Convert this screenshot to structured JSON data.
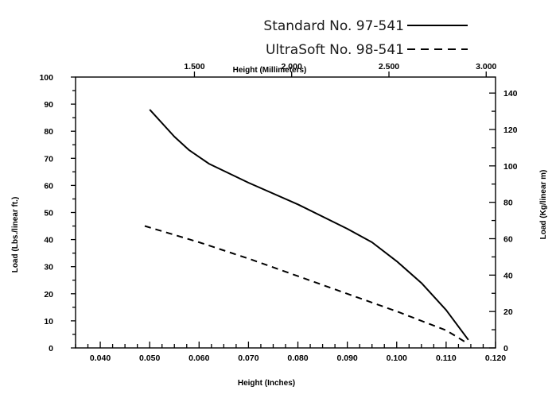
{
  "chart_data": {
    "type": "line",
    "legend_position": "top-right",
    "grid": false,
    "x_axis_bottom": {
      "label": "Height (Inches)",
      "range": [
        0.035,
        0.12
      ],
      "ticks": [
        "0.040",
        "0.050",
        "0.060",
        "0.070",
        "0.080",
        "0.090",
        "0.100",
        "0.110",
        "0.120"
      ]
    },
    "x_axis_top": {
      "label": "Height (Millimeters)",
      "ticks": [
        "1.500",
        "2.000",
        "2.500",
        "3.000"
      ],
      "tick_values_inches": [
        0.05906,
        0.07874,
        0.09843,
        0.11811
      ]
    },
    "y_axis_left": {
      "label": "Load (Lbs./linear ft.)",
      "range": [
        0,
        100
      ],
      "ticks": [
        "0",
        "10",
        "20",
        "30",
        "40",
        "50",
        "60",
        "70",
        "80",
        "90",
        "100"
      ]
    },
    "y_axis_right": {
      "label": "Load (Kg/linear m)",
      "range": [
        0,
        148.8
      ],
      "ticks": [
        "0",
        "20",
        "40",
        "60",
        "80",
        "100",
        "120",
        "140"
      ]
    },
    "series": [
      {
        "name": "Standard No. 97-541",
        "style": "solid",
        "x": [
          0.05,
          0.055,
          0.058,
          0.062,
          0.07,
          0.08,
          0.09,
          0.095,
          0.1,
          0.105,
          0.11,
          0.1145
        ],
        "y": [
          88,
          78,
          73,
          68,
          61,
          53,
          44,
          39,
          32,
          24,
          14,
          3
        ]
      },
      {
        "name": "UltraSoft No. 98-541",
        "style": "dashed",
        "x": [
          0.049,
          0.06,
          0.07,
          0.08,
          0.09,
          0.1,
          0.11,
          0.1145
        ],
        "y": [
          45,
          39,
          33,
          26.5,
          20,
          13.5,
          6.5,
          1.5
        ]
      }
    ]
  }
}
